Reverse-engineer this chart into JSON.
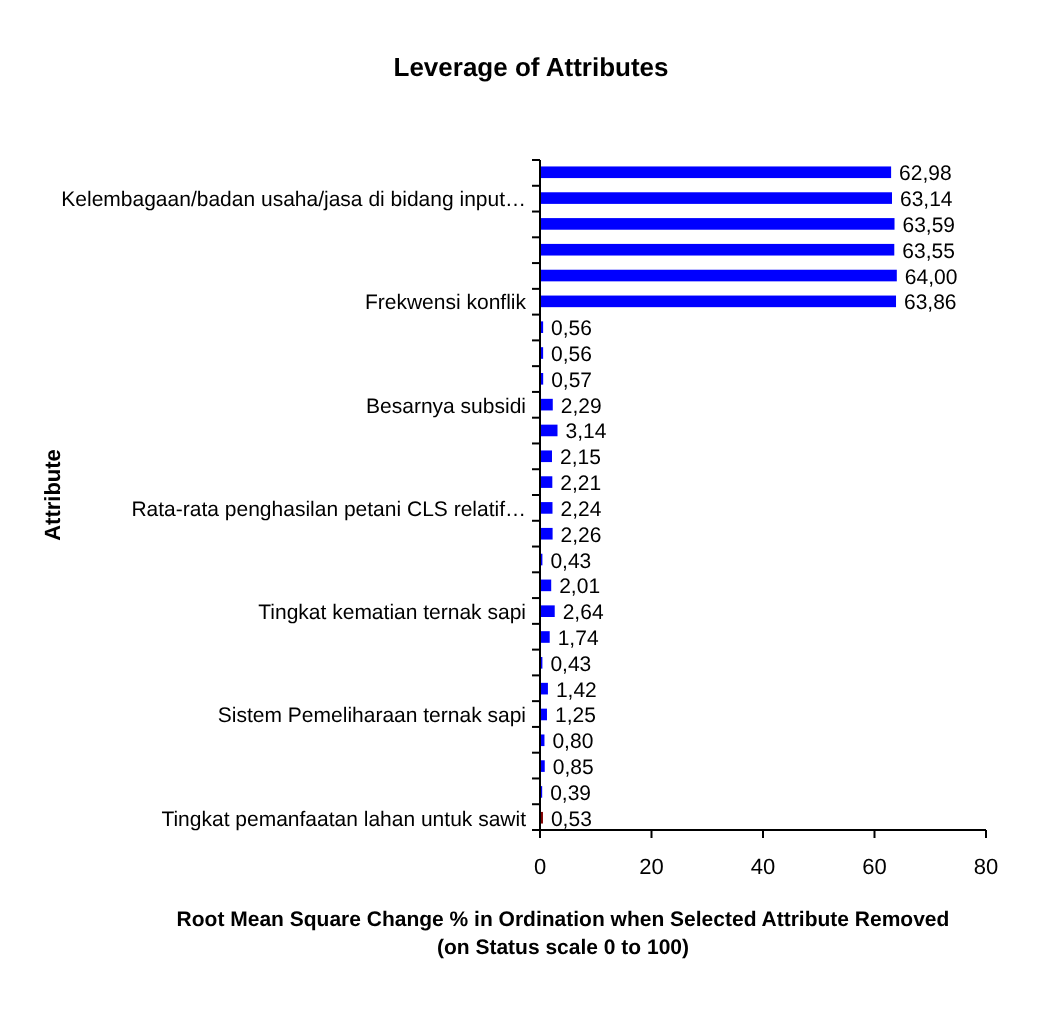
{
  "chart_data": {
    "type": "bar",
    "orientation": "horizontal",
    "title": "Leverage of Attributes",
    "ylabel": "Attribute",
    "xlabel": "Root Mean Square Change % in Ordination when Selected Attribute Removed\n(on Status scale 0 to 100)",
    "categories": [
      null,
      "Kelembagaan/badan usaha/jasa di bidang input…",
      null,
      null,
      null,
      "Frekwensi konflik",
      null,
      null,
      null,
      "Besarnya subsidi",
      null,
      null,
      null,
      "Rata-rata penghasilan petani CLS relatif…",
      null,
      null,
      null,
      "Tingkat kematian ternak sapi",
      null,
      null,
      null,
      "Sistem Pemeliharaan ternak sapi",
      null,
      null,
      null,
      "Tingkat pemanfaatan lahan untuk sawit"
    ],
    "values": [
      62.98,
      63.14,
      63.59,
      63.55,
      64.0,
      63.86,
      0.56,
      0.56,
      0.57,
      2.29,
      3.14,
      2.15,
      2.21,
      2.24,
      2.26,
      0.43,
      2.01,
      2.64,
      1.74,
      0.43,
      1.42,
      1.25,
      0.8,
      0.85,
      0.39,
      0.53
    ],
    "value_labels": [
      "62,98",
      "63,14",
      "63,59",
      "63,55",
      "64,00",
      "63,86",
      "0,56",
      "0,56",
      "0,57",
      "2,29",
      "3,14",
      "2,15",
      "2,21",
      "2,24",
      "2,26",
      "0,43",
      "2,01",
      "2,64",
      "1,74",
      "0,43",
      "1,42",
      "1,25",
      "0,80",
      "0,85",
      "0,39",
      "0,53"
    ],
    "colors": [
      "#0000ff",
      "#0000ff",
      "#0000ff",
      "#0000ff",
      "#0000ff",
      "#0000ff",
      "#0000ff",
      "#0000ff",
      "#0000ff",
      "#0000ff",
      "#0000ff",
      "#0000ff",
      "#0000ff",
      "#0000ff",
      "#0000ff",
      "#0000ff",
      "#0000ff",
      "#0000ff",
      "#0000ff",
      "#0000ff",
      "#0000ff",
      "#0000ff",
      "#0000ff",
      "#0000ff",
      "#0000ff",
      "#800000"
    ],
    "xlim": [
      0,
      80
    ],
    "xticks": [
      0,
      20,
      40,
      60,
      80
    ],
    "grid": false
  }
}
